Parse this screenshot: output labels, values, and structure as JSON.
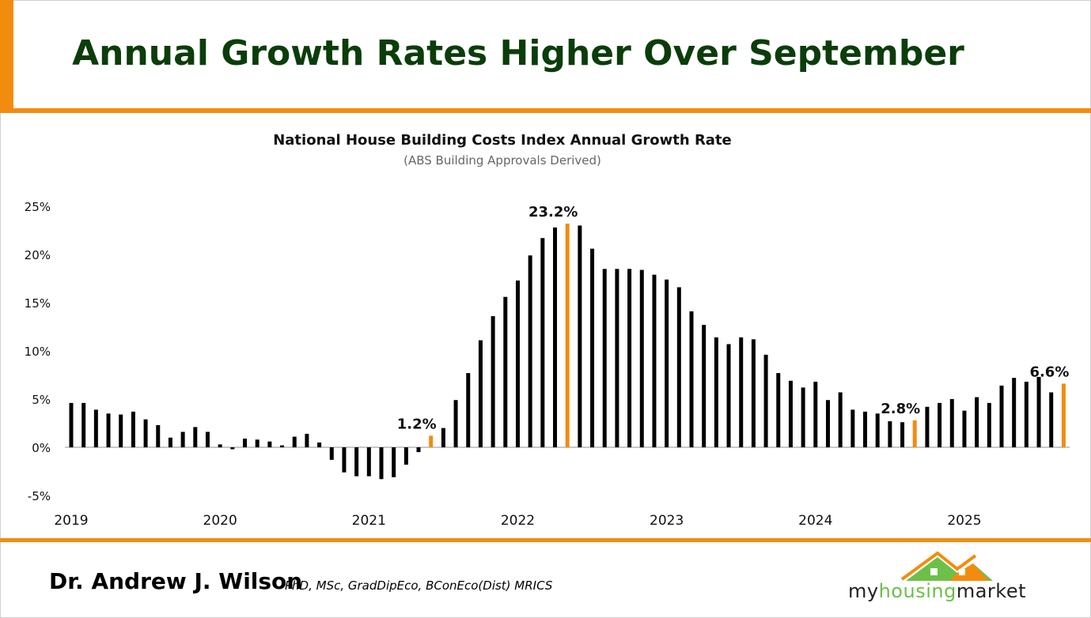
{
  "header": {
    "title": "Annual Growth Rates Higher Over September"
  },
  "footer": {
    "author": "Dr. Andrew J. Wilson",
    "credentials": "PhD, MSc, GradDipEco, BConEco(Dist) MRICS",
    "logo_text": [
      "my",
      "housing",
      "market"
    ]
  },
  "colors": {
    "title": "#0b3d0b",
    "accent": "#f28c0f",
    "bar": "#000000",
    "highlight": "#f28c0f",
    "logo_green": "#6cc04a"
  },
  "chart_data": {
    "type": "bar",
    "title": "National House Building Costs Index Annual Growth Rate",
    "subtitle": "(ABS Building Approvals Derived)",
    "xlabel": "",
    "ylabel": "",
    "x_start": "2019-01",
    "frequency": "monthly",
    "xtick_labels": [
      "2019",
      "2020",
      "2021",
      "2022",
      "2023",
      "2024",
      "2025"
    ],
    "ytick_labels": [
      "-5%",
      "0%",
      "5%",
      "10%",
      "15%",
      "20%",
      "25%"
    ],
    "ylim": [
      -5,
      25
    ],
    "grid": false,
    "values": [
      4.6,
      4.6,
      3.9,
      3.5,
      3.4,
      3.7,
      2.9,
      2.3,
      1.0,
      1.6,
      2.1,
      1.6,
      0.3,
      -0.2,
      0.9,
      0.8,
      0.6,
      0.2,
      1.1,
      1.4,
      0.5,
      -1.3,
      -2.6,
      -3.0,
      -3.0,
      -3.3,
      -3.1,
      -1.8,
      -0.5,
      1.2,
      2.0,
      4.9,
      7.7,
      11.1,
      13.6,
      15.6,
      17.3,
      19.9,
      21.7,
      22.8,
      23.2,
      23.0,
      20.6,
      18.5,
      18.5,
      18.5,
      18.4,
      17.9,
      17.4,
      16.6,
      14.1,
      12.7,
      11.4,
      10.7,
      11.4,
      11.2,
      9.6,
      7.7,
      6.9,
      6.2,
      6.8,
      4.9,
      5.7,
      3.9,
      3.7,
      3.5,
      2.7,
      2.6,
      2.8,
      4.2,
      4.6,
      5.0,
      3.8,
      5.2,
      4.6,
      6.4,
      7.2,
      6.8,
      7.3,
      5.7,
      6.6
    ],
    "highlighted": [
      {
        "index": 29,
        "label": "1.2%"
      },
      {
        "index": 40,
        "label": "23.2%"
      },
      {
        "index": 68,
        "label": "2.8%"
      },
      {
        "index": 80,
        "label": "6.6%"
      }
    ]
  }
}
